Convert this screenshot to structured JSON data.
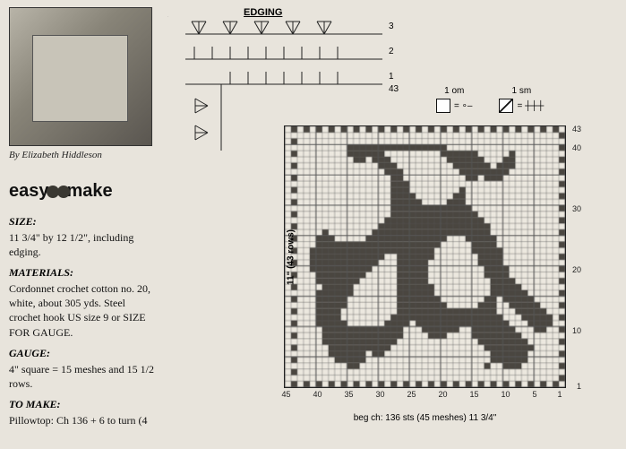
{
  "credit": "By Elizabeth Hiddleson",
  "logo": {
    "left": "easy",
    "mid": "to",
    "right": "make"
  },
  "sections": {
    "size": {
      "label": "SIZE:",
      "text": "11 3/4\" by 12 1/2\", including edging."
    },
    "materials": {
      "label": "MATERIALS:",
      "text": "Cordonnet crochet cotton no. 20, white, about 305 yds. Steel crochet hook US size 9 or SIZE FOR GAUGE."
    },
    "gauge": {
      "label": "GAUGE:",
      "text": "4\" square = 15 meshes and 15 1/2 rows."
    },
    "tomake": {
      "label": "TO MAKE:",
      "text": "Pillowtop: Ch 136 + 6 to turn (4"
    }
  },
  "edging": {
    "title": "EDGING",
    "row_labels": [
      "3",
      "2",
      "1",
      "43"
    ]
  },
  "legend": {
    "open": {
      "label": "1 om",
      "sym": "= ∘–"
    },
    "solid": {
      "label": "1 sm",
      "sym": "= ┼┼┼"
    }
  },
  "chart": {
    "cols": 45,
    "rows": 43,
    "y_label": "11\" (43 rows)",
    "x_label": "beg ch: 136 sts (45 meshes) 11 3/4\"",
    "x_ticks": [
      45,
      40,
      35,
      30,
      25,
      20,
      15,
      10,
      5,
      1
    ],
    "y_ticks": [
      43,
      40,
      30,
      20,
      10,
      1
    ],
    "grid_color": "#555555",
    "fill_color": "#4a4640",
    "background": "#ece8df",
    "filled": {
      "1": [
        2,
        4,
        6,
        8,
        10,
        12,
        14,
        16,
        18,
        20,
        22,
        24,
        26,
        28,
        30,
        32,
        34,
        36,
        38,
        40,
        42,
        44
      ],
      "2": [
        1
      ],
      "3": [
        44
      ],
      "4": [
        1,
        8,
        9,
        10,
        13,
        34,
        35
      ],
      "5": [
        7,
        8,
        9,
        10,
        11,
        12,
        33,
        34,
        35,
        36,
        37,
        44
      ],
      "6": [
        1,
        7,
        8,
        9,
        10,
        11,
        12,
        30,
        31,
        33,
        34,
        35,
        36,
        37,
        38
      ],
      "7": [
        6,
        7,
        8,
        9,
        10,
        11,
        12,
        13,
        29,
        30,
        31,
        32,
        33,
        34,
        35,
        36,
        37,
        38,
        44
      ],
      "8": [
        1,
        7,
        8,
        9,
        10,
        11,
        12,
        13,
        14,
        28,
        29,
        30,
        31,
        32,
        33,
        34,
        35,
        36,
        37,
        38,
        39
      ],
      "9": [
        8,
        9,
        10,
        11,
        12,
        13,
        14,
        15,
        20,
        21,
        22,
        27,
        28,
        29,
        30,
        31,
        32,
        33,
        34,
        35,
        36,
        37,
        38,
        39,
        44
      ],
      "10": [
        1,
        4,
        5,
        9,
        10,
        11,
        12,
        13,
        14,
        15,
        18,
        19,
        20,
        21,
        22,
        23,
        27,
        28,
        29,
        30,
        31,
        32,
        33,
        34,
        35,
        36,
        37,
        38,
        39
      ],
      "11": [
        3,
        4,
        5,
        6,
        10,
        11,
        12,
        13,
        14,
        15,
        16,
        17,
        18,
        19,
        20,
        21,
        22,
        23,
        24,
        26,
        27,
        28,
        29,
        36,
        37,
        38,
        39,
        40,
        44
      ],
      "12": [
        1,
        3,
        4,
        5,
        6,
        7,
        11,
        12,
        13,
        14,
        15,
        16,
        17,
        18,
        19,
        20,
        21,
        22,
        23,
        24,
        25,
        26,
        27,
        28,
        37,
        38,
        39,
        40
      ],
      "13": [
        4,
        5,
        6,
        7,
        8,
        12,
        13,
        14,
        15,
        16,
        17,
        18,
        19,
        20,
        21,
        22,
        23,
        24,
        25,
        26,
        27,
        37,
        38,
        39,
        40,
        44
      ],
      "14": [
        1,
        5,
        6,
        7,
        8,
        9,
        12,
        13,
        14,
        20,
        21,
        22,
        23,
        24,
        25,
        26,
        27,
        36,
        37,
        38,
        39,
        40
      ],
      "15": [
        6,
        7,
        8,
        9,
        10,
        12,
        13,
        21,
        22,
        23,
        24,
        25,
        26,
        27,
        36,
        37,
        38,
        39,
        40,
        44
      ],
      "16": [
        1,
        7,
        8,
        9,
        10,
        11,
        12,
        22,
        23,
        24,
        25,
        26,
        27,
        35,
        36,
        37,
        38,
        39,
        40
      ],
      "17": [
        8,
        9,
        10,
        11,
        12,
        22,
        23,
        24,
        25,
        26,
        27,
        35,
        36,
        37,
        38,
        39,
        44
      ],
      "18": [
        1,
        9,
        10,
        11,
        12,
        23,
        24,
        25,
        26,
        27,
        34,
        35,
        36,
        37,
        38,
        39,
        40
      ],
      "19": [
        10,
        11,
        12,
        13,
        23,
        24,
        25,
        26,
        27,
        33,
        34,
        35,
        36,
        37,
        38,
        39,
        40,
        44
      ],
      "20": [
        1,
        10,
        11,
        12,
        13,
        23,
        24,
        25,
        26,
        27,
        32,
        33,
        34,
        35,
        36,
        37,
        38,
        39,
        40,
        41
      ],
      "21": [
        11,
        12,
        13,
        14,
        23,
        24,
        25,
        26,
        27,
        31,
        32,
        33,
        34,
        35,
        36,
        37,
        38,
        39,
        40,
        41,
        44
      ],
      "22": [
        1,
        11,
        12,
        13,
        14,
        22,
        23,
        24,
        25,
        26,
        27,
        30,
        31,
        32,
        33,
        34,
        35,
        36,
        37,
        38,
        39,
        40,
        41
      ],
      "23": [
        11,
        12,
        13,
        14,
        15,
        22,
        23,
        24,
        25,
        26,
        27,
        28,
        29,
        30,
        31,
        32,
        33,
        34,
        35,
        36,
        37,
        38,
        39,
        40,
        41,
        44
      ],
      "24": [
        1,
        12,
        13,
        14,
        15,
        21,
        22,
        23,
        24,
        25,
        26,
        27,
        28,
        29,
        30,
        31,
        32,
        33,
        34,
        35,
        36,
        37,
        38,
        39,
        40
      ],
      "25": [
        12,
        13,
        14,
        15,
        16,
        20,
        21,
        22,
        23,
        24,
        25,
        26,
        27,
        28,
        29,
        30,
        31,
        32,
        38,
        39,
        40,
        44
      ],
      "26": [
        1,
        13,
        14,
        15,
        16,
        17,
        18,
        19,
        20,
        21,
        22,
        23,
        24,
        25,
        26,
        27,
        28,
        29,
        30,
        31,
        39
      ],
      "27": [
        13,
        14,
        15,
        16,
        17,
        18,
        19,
        20,
        21,
        22,
        23,
        24,
        25,
        26,
        27,
        28,
        29,
        30,
        44
      ],
      "28": [
        1,
        14,
        15,
        16,
        17,
        18,
        19,
        20,
        21,
        22,
        23,
        24,
        25,
        26,
        27,
        28,
        29
      ],
      "29": [
        15,
        16,
        17,
        18,
        19,
        20,
        21,
        22,
        23,
        24,
        25,
        26,
        27,
        28,
        44
      ],
      "30": [
        1,
        16,
        17,
        18,
        19,
        20,
        21,
        22,
        23,
        24,
        25,
        26,
        27,
        28
      ],
      "31": [
        17,
        18,
        19,
        24,
        25,
        26,
        27,
        28,
        44
      ],
      "32": [
        1,
        17,
        18,
        25,
        26,
        27,
        28
      ],
      "33": [
        17,
        26,
        27,
        28,
        44
      ],
      "34": [
        1,
        26,
        27,
        28
      ],
      "35": [
        11,
        12,
        13,
        15,
        16,
        27,
        28,
        44
      ],
      "36": [
        1,
        10,
        11,
        12,
        13,
        14,
        15,
        16,
        17,
        27,
        28,
        29
      ],
      "37": [
        9,
        10,
        11,
        13,
        14,
        15,
        16,
        17,
        18,
        28,
        29,
        30,
        44
      ],
      "38": [
        1,
        9,
        10,
        14,
        15,
        16,
        17,
        18,
        19,
        29,
        30,
        31,
        33,
        34
      ],
      "39": [
        9,
        15,
        16,
        17,
        18,
        19,
        20,
        30,
        31,
        32,
        33,
        34,
        35,
        44
      ],
      "40": [
        1,
        20,
        21,
        22,
        23,
        24,
        25,
        26,
        27,
        28,
        29,
        30,
        31,
        32,
        33,
        34,
        35
      ],
      "41": [
        44
      ],
      "42": [
        1
      ],
      "43": [
        2,
        4,
        6,
        8,
        10,
        12,
        14,
        16,
        18,
        20,
        22,
        24,
        26,
        28,
        30,
        32,
        34,
        36,
        38,
        40,
        42,
        44
      ]
    }
  }
}
